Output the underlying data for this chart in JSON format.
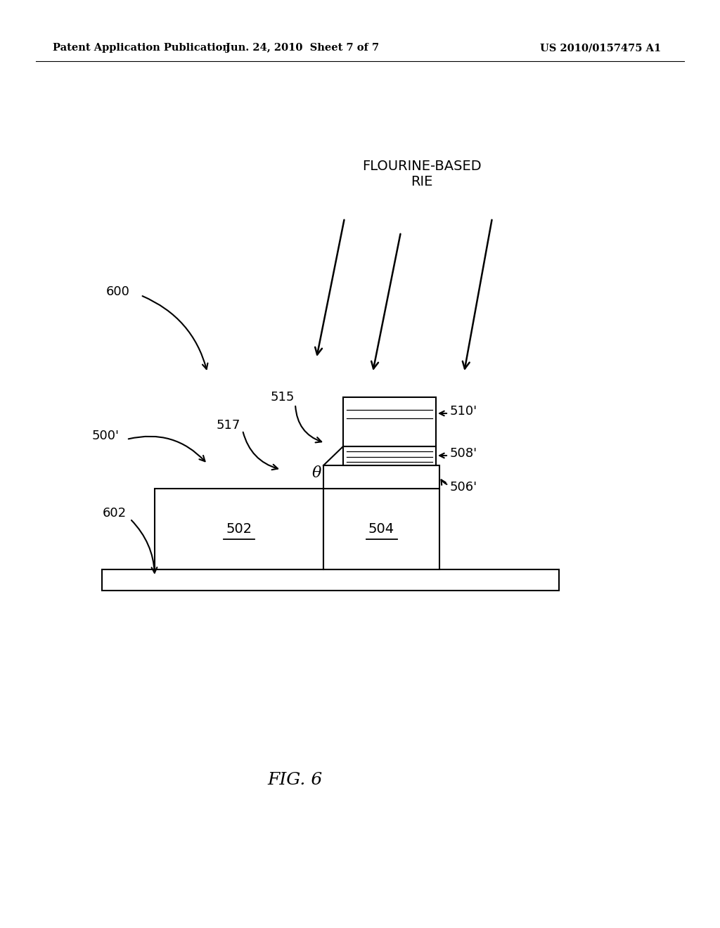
{
  "bg_color": "#ffffff",
  "header_left": "Patent Application Publication",
  "header_mid": "Jun. 24, 2010  Sheet 7 of 7",
  "header_right": "US 2010/0157475 A1",
  "fig_label": "FIG. 6",
  "header_fontsize": 10.5,
  "label_600": "600",
  "label_602": "602",
  "label_500p": "500'",
  "label_515": "515",
  "label_517": "517",
  "label_502": "502",
  "label_504": "504",
  "label_510p": "510'",
  "label_508p": "508'",
  "label_506p": "506'",
  "label_rie": "FLOURINE-BASED\nRIE",
  "label_theta": "θ"
}
